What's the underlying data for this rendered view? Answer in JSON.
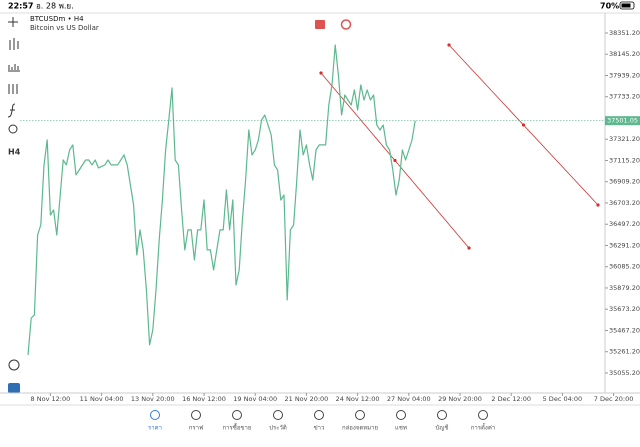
{
  "status_bar": {
    "time": "22:57",
    "date": "อ. 28 พ.ย.",
    "battery": "70%"
  },
  "chart_data": {
    "type": "line",
    "title": "BTCUSDm • H4",
    "subtitle": "Bitcoin vs US Dollar",
    "timeframe": "H4",
    "x": [
      0,
      1,
      2,
      3,
      4,
      5,
      6,
      7,
      8,
      9,
      11,
      12,
      13,
      14,
      15,
      16,
      18,
      19,
      20,
      21,
      22,
      24,
      25,
      26,
      28,
      29,
      30,
      31,
      33,
      34,
      35,
      36,
      37,
      38,
      39,
      40,
      41,
      42,
      43,
      44,
      45,
      46,
      47,
      48,
      49,
      50,
      51,
      52,
      53,
      54,
      55,
      56,
      57,
      58,
      59,
      60,
      61,
      62,
      63,
      64,
      65,
      66,
      67,
      68,
      69,
      70,
      71,
      72,
      73,
      74,
      75,
      76,
      77,
      78,
      79,
      80,
      81,
      82,
      83,
      84,
      85,
      86,
      87,
      88,
      89,
      90,
      91,
      92,
      93,
      94,
      95,
      96,
      97,
      98,
      99,
      100,
      101,
      102,
      103,
      104,
      105,
      106,
      107,
      108,
      109,
      110,
      111,
      112,
      113,
      114,
      115,
      116,
      117,
      118,
      119,
      120,
      121
    ],
    "series": [
      {
        "name": "BTCUSDm",
        "color": "#5cb88e",
        "values": [
          35230,
          35588,
          35618,
          36393,
          36490,
          37072,
          37314,
          36587,
          36635,
          36393,
          37120,
          37072,
          37217,
          37266,
          36975,
          37023,
          37120,
          37120,
          37072,
          37120,
          37043,
          37072,
          37120,
          37072,
          37072,
          37120,
          37169,
          37072,
          36684,
          36199,
          36442,
          36248,
          35860,
          35327,
          35472,
          35860,
          36345,
          36732,
          37217,
          37508,
          37818,
          37120,
          37072,
          36635,
          36248,
          36442,
          36442,
          36151,
          36442,
          36442,
          36732,
          36248,
          36248,
          36054,
          36248,
          36442,
          36442,
          36829,
          36442,
          36732,
          35908,
          36054,
          36538,
          36926,
          37411,
          37169,
          37217,
          37314,
          37508,
          37556,
          37459,
          37362,
          37072,
          37023,
          36732,
          36781,
          35763,
          36442,
          36490,
          36926,
          37411,
          37169,
          37266,
          37072,
          36926,
          37217,
          37266,
          37266,
          37266,
          37653,
          37847,
          38235,
          37944,
          37556,
          37750,
          37702,
          37653,
          37799,
          37605,
          37847,
          37702,
          37799,
          37702,
          37750,
          37459,
          37411,
          37459,
          37266,
          37217,
          37023,
          36781,
          36926,
          37217,
          37120,
          37217,
          37314,
          37501.05
        ]
      }
    ],
    "current_price": 37501.05,
    "current_price_color": "#5cb88e",
    "xlim": [
      -2.5,
      191.25
    ],
    "ylim": [
      34861,
      38545
    ],
    "xticks": [
      {
        "value": 7,
        "label": "8 Nov 12:00"
      },
      {
        "value": 23,
        "label": "11 Nov 04:00"
      },
      {
        "value": 39,
        "label": "13 Nov 20:00"
      },
      {
        "value": 55,
        "label": "16 Nov 12:00"
      },
      {
        "value": 71,
        "label": "19 Nov 04:00"
      },
      {
        "value": 87,
        "label": "21 Nov 20:00"
      },
      {
        "value": 103,
        "label": "24 Nov 12:00"
      },
      {
        "value": 119,
        "label": "27 Nov 04:00"
      },
      {
        "value": 135,
        "label": "29 Nov 20:00"
      },
      {
        "value": 151,
        "label": "2 Dec 12:00"
      },
      {
        "value": 167,
        "label": "5 Dec 04:00"
      },
      {
        "value": 183,
        "label": "7 Dec 20:00"
      }
    ],
    "yticks": [
      {
        "value": 38351.2,
        "label": "38351.20"
      },
      {
        "value": 38145.2,
        "label": "38145.20"
      },
      {
        "value": 37939.2,
        "label": "37939.20"
      },
      {
        "value": 37733.2,
        "label": "37733.20"
      },
      {
        "value": 37321.2,
        "label": "37321.20"
      },
      {
        "value": 37115.2,
        "label": "37115.20"
      },
      {
        "value": 36909.2,
        "label": "36909.20"
      },
      {
        "value": 36703.2,
        "label": "36703.20"
      },
      {
        "value": 36497.2,
        "label": "36497.20"
      },
      {
        "value": 36291.2,
        "label": "36291.20"
      },
      {
        "value": 36085.2,
        "label": "36085.20"
      },
      {
        "value": 35879.2,
        "label": "35879.20"
      },
      {
        "value": 35673.2,
        "label": "35673.20"
      },
      {
        "value": 35467.2,
        "label": "35467.20"
      },
      {
        "value": 35261.2,
        "label": "35261.20"
      },
      {
        "value": 35055.2,
        "label": "35055.20"
      }
    ],
    "grid": false
  },
  "nav": {
    "items": [
      "ราคา",
      "กราฟ",
      "การซื้อขาย",
      "ประวัติ",
      "ข่าว",
      "กล่องจดหมาย",
      "แชท",
      "บัญชี",
      "การตั้งค่า"
    ]
  }
}
